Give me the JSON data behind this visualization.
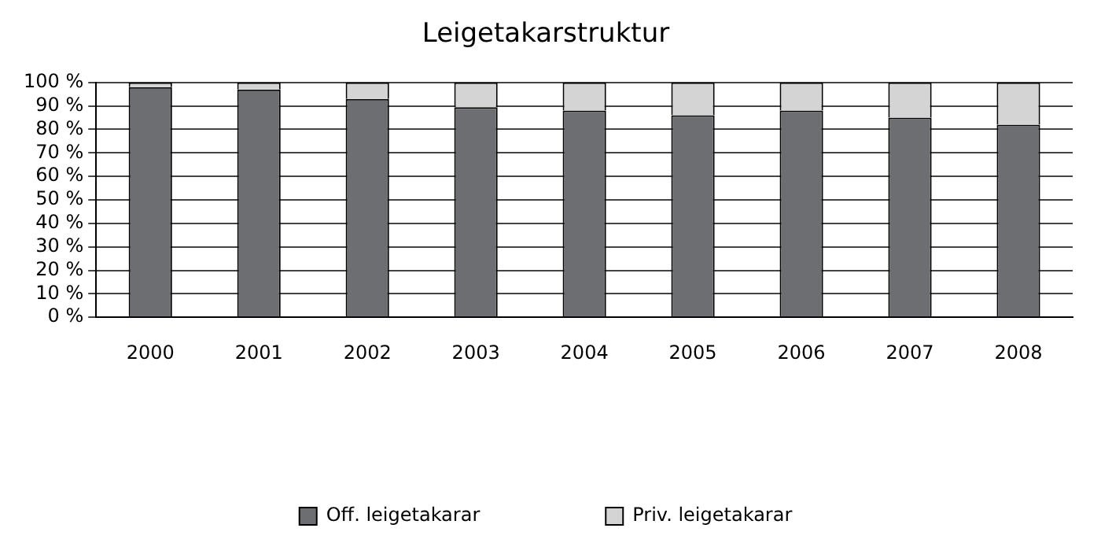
{
  "chart_data": {
    "type": "bar",
    "title": "Leigetakarstruktur",
    "stacked": true,
    "grid": "y",
    "legend": "bottom",
    "categories": [
      "2000",
      "2001",
      "2002",
      "2003",
      "2004",
      "2005",
      "2006",
      "2007",
      "2008"
    ],
    "series": [
      {
        "name": "Off. leigetakarar",
        "color": "#6d6e71",
        "values": [
          98,
          97,
          93,
          89.5,
          88,
          86,
          88,
          85,
          82
        ]
      },
      {
        "name": "Priv. leigetakarar",
        "color": "#d4d4d4",
        "values": [
          2,
          3,
          7,
          10.5,
          12,
          14,
          12,
          15,
          18
        ]
      }
    ],
    "ylim": [
      0,
      100
    ],
    "yticks": [
      {
        "value": 0,
        "label": "0 %"
      },
      {
        "value": 10,
        "label": "10 %"
      },
      {
        "value": 20,
        "label": "20 %"
      },
      {
        "value": 30,
        "label": "30 %"
      },
      {
        "value": 40,
        "label": "40 %"
      },
      {
        "value": 50,
        "label": "50 %"
      },
      {
        "value": 60,
        "label": "60 %"
      },
      {
        "value": 70,
        "label": "70 %"
      },
      {
        "value": 80,
        "label": "80 %"
      },
      {
        "value": 90,
        "label": "90 %"
      },
      {
        "value": 100,
        "label": "100 %"
      }
    ]
  }
}
